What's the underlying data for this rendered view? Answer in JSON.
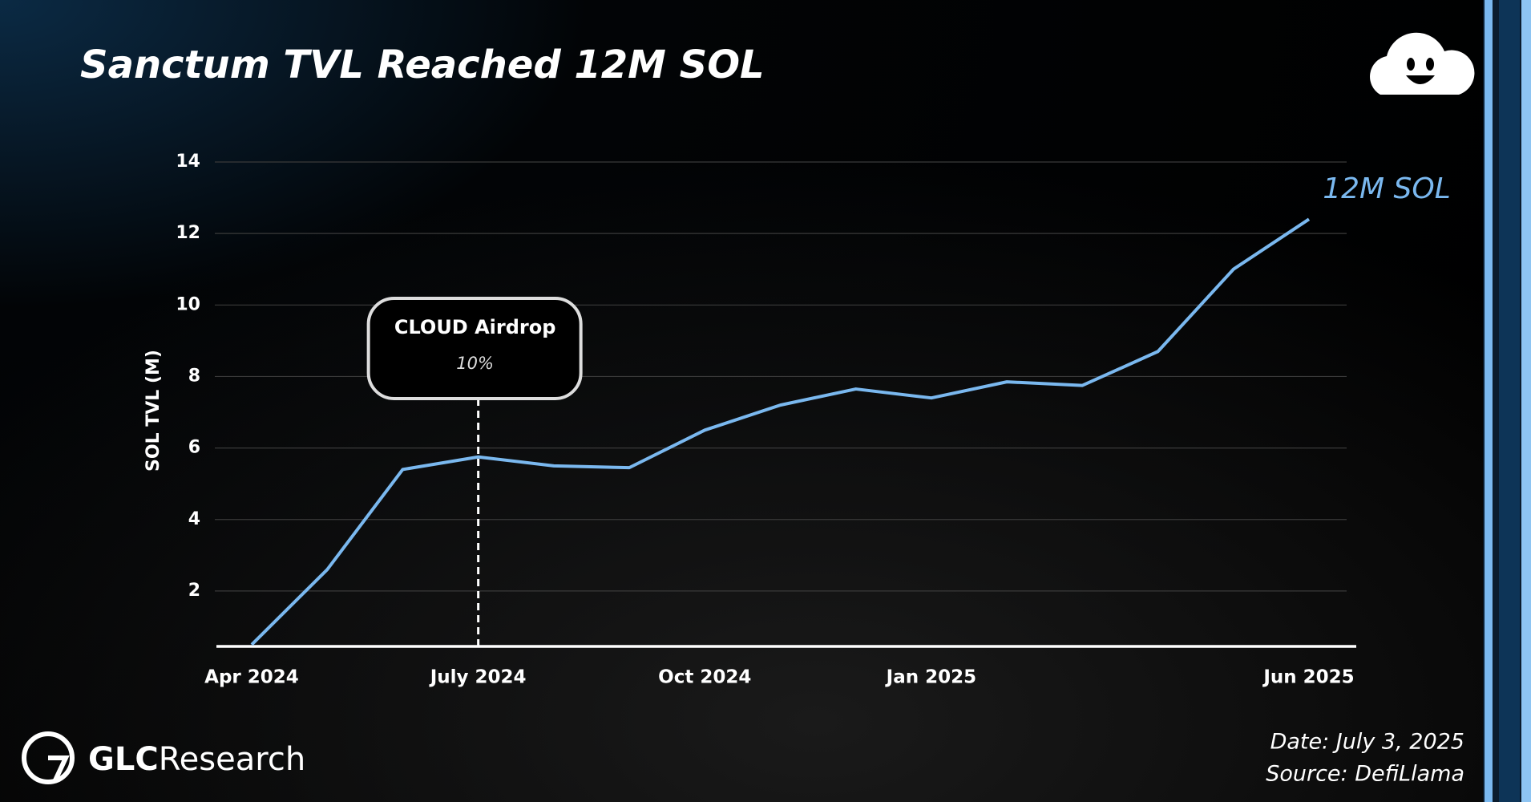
{
  "chart_data": {
    "type": "line",
    "title": "Sanctum TVL Reached 12M SOL",
    "y_label": "SOL TVL (M)",
    "categories": [
      "Apr 2024",
      null,
      null,
      "July 2024",
      null,
      null,
      "Oct 2024",
      null,
      null,
      "Jan 2025",
      null,
      null,
      null,
      null,
      "Jun 2025"
    ],
    "series": [
      {
        "name": "Sanctum TVL",
        "color": "#7ab8ef",
        "values": [
          0.5,
          2.6,
          5.4,
          5.75,
          5.5,
          5.45,
          6.5,
          7.2,
          7.65,
          7.4,
          7.85,
          7.75,
          8.7,
          11.0,
          12.4
        ]
      }
    ],
    "ylim": [
      0.45,
      14
    ],
    "yticks": [
      2,
      4,
      6,
      8,
      10,
      12,
      14
    ],
    "grid": true,
    "annotation": {
      "x": "July 2024",
      "title": "CLOUD Airdrop",
      "text": "10%"
    },
    "end_label": "12M SOL"
  },
  "footer": {
    "brand_bold": "GLC",
    "brand_light": "Research",
    "date": "Date: July 3, 2025",
    "source": "Source: DefiLlama"
  }
}
